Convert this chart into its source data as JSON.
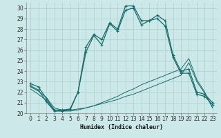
{
  "xlabel": "Humidex (Indice chaleur)",
  "bg_color": "#cce8e8",
  "grid_color": "#aacece",
  "line_color": "#1a6b6b",
  "xlim": [
    -0.5,
    23.5
  ],
  "ylim": [
    20,
    30.5
  ],
  "xticks": [
    0,
    1,
    2,
    3,
    4,
    5,
    6,
    7,
    8,
    9,
    10,
    11,
    12,
    13,
    14,
    15,
    16,
    17,
    18,
    19,
    20,
    21,
    22,
    23
  ],
  "yticks": [
    20,
    21,
    22,
    23,
    24,
    25,
    26,
    27,
    28,
    29,
    30
  ],
  "series1_x": [
    0,
    1,
    2,
    3,
    4,
    5,
    6,
    7,
    8,
    9,
    10,
    11,
    12,
    13,
    14,
    15,
    16,
    17,
    18,
    19,
    20,
    21,
    22,
    23
  ],
  "series1_y": [
    22.8,
    22.5,
    21.4,
    20.3,
    20.3,
    20.4,
    22.0,
    26.3,
    27.5,
    27.0,
    28.6,
    28.0,
    30.2,
    30.2,
    28.8,
    28.8,
    29.3,
    28.8,
    25.5,
    24.0,
    24.2,
    22.0,
    21.8,
    21.0
  ],
  "series2_x": [
    0,
    1,
    2,
    3,
    4,
    5,
    6,
    7,
    8,
    9,
    10,
    11,
    12,
    13,
    14,
    15,
    16,
    17,
    18,
    19,
    20,
    21,
    22,
    23
  ],
  "series2_y": [
    22.6,
    22.2,
    21.1,
    20.2,
    20.2,
    20.3,
    22.0,
    25.8,
    27.4,
    26.5,
    28.5,
    27.8,
    29.8,
    30.0,
    28.4,
    28.8,
    29.0,
    28.3,
    25.3,
    23.8,
    23.8,
    21.8,
    21.6,
    20.8
  ],
  "series3_x": [
    0,
    1,
    2,
    3,
    4,
    5,
    6,
    7,
    8,
    9,
    10,
    11,
    12,
    13,
    14,
    15,
    16,
    17,
    18,
    19,
    20,
    21,
    22,
    23
  ],
  "series3_y": [
    22.5,
    22.1,
    21.5,
    20.5,
    20.3,
    20.3,
    20.4,
    20.5,
    20.7,
    20.9,
    21.1,
    21.3,
    21.6,
    21.8,
    22.1,
    22.4,
    22.7,
    23.0,
    23.3,
    23.6,
    24.8,
    23.0,
    21.9,
    20.5
  ],
  "series4_x": [
    0,
    1,
    2,
    3,
    4,
    5,
    6,
    7,
    8,
    9,
    10,
    11,
    12,
    13,
    14,
    15,
    16,
    17,
    18,
    19,
    20,
    21,
    22,
    23
  ],
  "series4_y": [
    22.3,
    21.8,
    21.2,
    20.3,
    20.2,
    20.2,
    20.3,
    20.5,
    20.7,
    21.0,
    21.3,
    21.6,
    22.0,
    22.3,
    22.7,
    23.0,
    23.3,
    23.6,
    23.9,
    24.2,
    25.2,
    23.2,
    22.0,
    20.5
  ]
}
